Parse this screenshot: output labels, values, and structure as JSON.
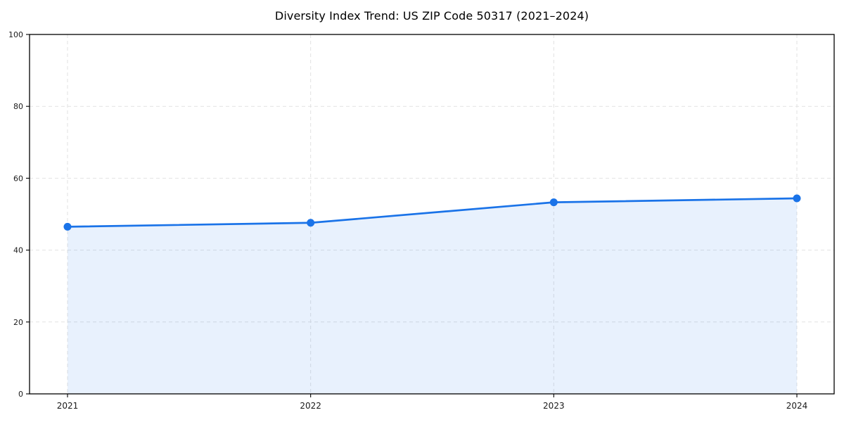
{
  "chart_data": {
    "type": "area",
    "title": "Diversity Index Trend: US ZIP Code 50317 (2021–2024)",
    "categories": [
      "2021",
      "2022",
      "2023",
      "2024"
    ],
    "series": [
      {
        "name": "Diversity Index",
        "values": [
          46.5,
          47.6,
          53.3,
          54.4
        ]
      }
    ],
    "xlabel": "",
    "ylabel": "",
    "ylim": [
      0,
      100
    ],
    "yticks": [
      0,
      20,
      40,
      60,
      80,
      100
    ],
    "grid": true,
    "grid_style": "dashed",
    "legend": "none",
    "marker": "circle",
    "colors": {
      "line": "#1a73e8",
      "marker": "#1a73e8",
      "fill": "rgba(26,115,232,0.10)",
      "grid": "#e2e2e2",
      "spine": "#000000",
      "text": "#1a1a1a"
    }
  }
}
